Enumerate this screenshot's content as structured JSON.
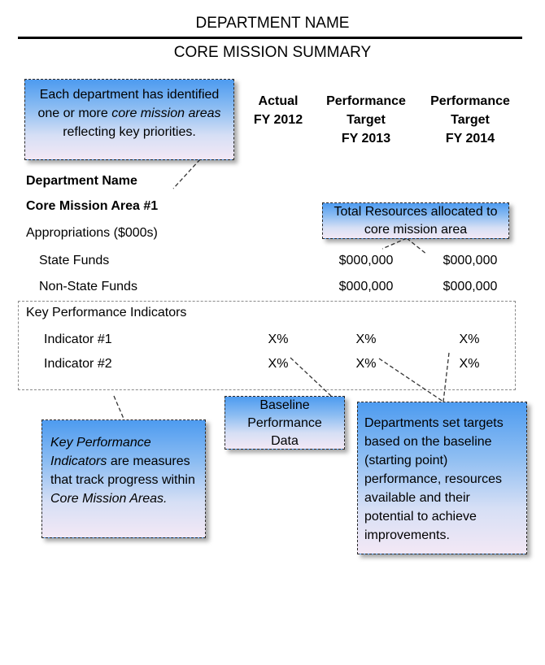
{
  "header": {
    "department_name": "DEPARTMENT NAME",
    "summary_title": "CORE MISSION SUMMARY"
  },
  "columns": [
    {
      "label": "Actual\nFY 2012"
    },
    {
      "label": "Performance\nTarget\nFY 2013"
    },
    {
      "label": "Performance\nTarget\nFY 2014"
    }
  ],
  "rows": {
    "department_name": "Department Name",
    "core_mission_area": "Core Mission Area #1",
    "appropriations": "Appropriations ($000s)",
    "state_funds": {
      "label": "State Funds",
      "fy2013": "$000,000",
      "fy2014": "$000,000"
    },
    "non_state_funds": {
      "label": "Non-State Funds",
      "fy2013": "$000,000",
      "fy2014": "$000,000"
    }
  },
  "kpi": {
    "title": "Key Performance Indicators",
    "indicators": [
      {
        "label": "Indicator #1",
        "fy2012": "X%",
        "fy2013": "X%",
        "fy2014": "X%"
      },
      {
        "label": "Indicator #2",
        "fy2012": "X%",
        "fy2013": "X%",
        "fy2014": "X%"
      }
    ]
  },
  "callouts": {
    "core_mission": {
      "line1": "Each department  has identified one or more ",
      "italic": "core mission areas",
      "line2": " reflecting key priorities."
    },
    "total_resources": "Total Resources allocated to core mission area",
    "kpi_note": {
      "italic1": "Key Performance Indicators",
      "mid": " are measures that track progress within ",
      "italic2": "Core Mission Areas."
    },
    "baseline": "Baseline Performance Data",
    "targets": "Departments set targets based on the baseline (starting point) performance, resources available and their potential to achieve improvements."
  }
}
